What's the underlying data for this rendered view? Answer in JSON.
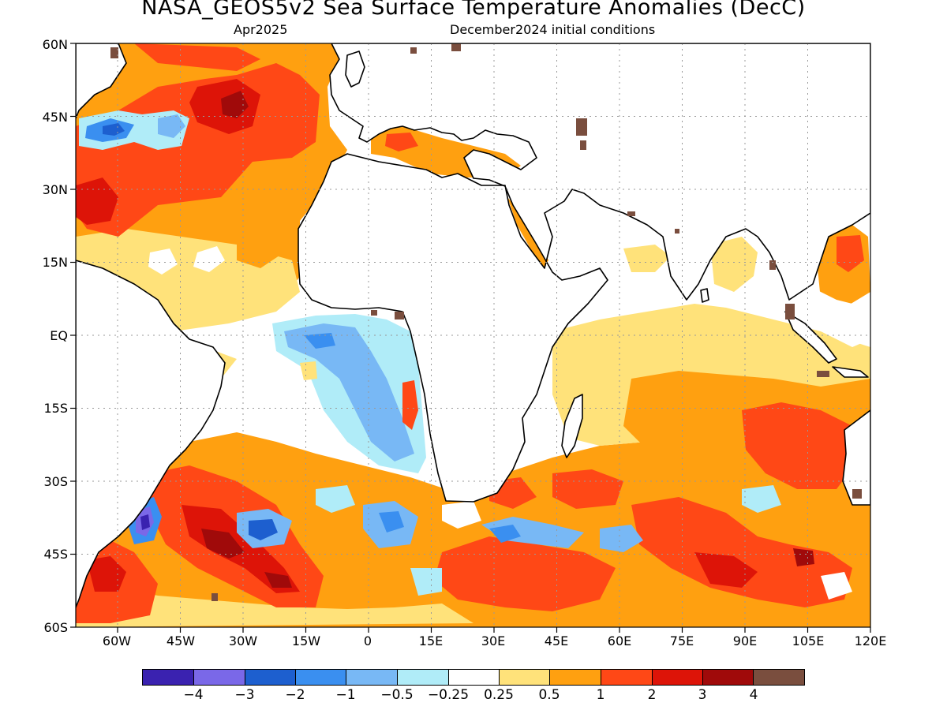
{
  "header": {
    "title": "NASA_GEOS5v2 Sea Surface Temperature Anomalies (DecC)",
    "forecast_month": "Apr2025",
    "init_conditions": "December2024 initial conditions"
  },
  "axes": {
    "lat_labels": [
      "60N",
      "45N",
      "30N",
      "15N",
      "EQ",
      "15S",
      "30S",
      "45S",
      "60S"
    ],
    "lat_values": [
      60,
      45,
      30,
      15,
      0,
      -15,
      -30,
      -45,
      -60
    ],
    "lon_labels": [
      "60W",
      "45W",
      "30W",
      "15W",
      "0",
      "15E",
      "30E",
      "45E",
      "60E",
      "75E",
      "90E",
      "105E",
      "120E"
    ],
    "lon_values": [
      -60,
      -45,
      -30,
      -15,
      0,
      15,
      30,
      45,
      60,
      75,
      90,
      105,
      120
    ],
    "lon_range": [
      -70,
      120
    ],
    "lat_range": [
      -60,
      60
    ],
    "grid": "dotted"
  },
  "colorbar": {
    "labels": [
      "−4",
      "−3",
      "−2",
      "−1",
      "−0.5",
      "−0.25",
      "0.25",
      "0.5",
      "1",
      "2",
      "3",
      "4"
    ],
    "colors": [
      "#3a22b0",
      "#7a68e8",
      "#1d5fcf",
      "#3a8ff0",
      "#78b8f5",
      "#b0ecf8",
      "#ffffff",
      "#ffe27a",
      "#ffa010",
      "#ff4816",
      "#dd1408",
      "#a00a0a",
      "#7a4e3e"
    ]
  },
  "land_color": "#ffffff",
  "coastline_color": "#000000"
}
